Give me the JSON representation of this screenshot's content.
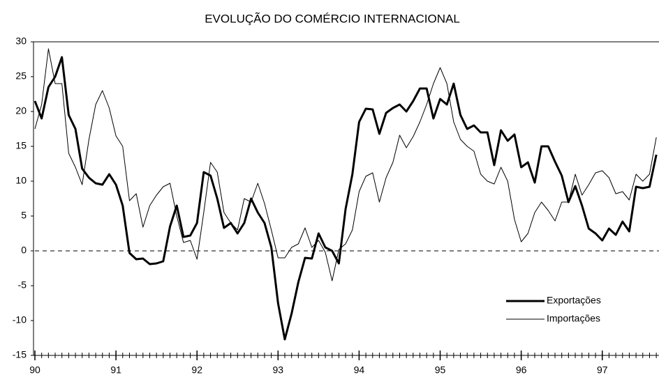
{
  "chart_data": {
    "type": "line",
    "title": "EVOLUÇÃO DO COMÉRCIO INTERNACIONAL",
    "x": [
      90,
      90.083,
      90.167,
      90.25,
      90.333,
      90.417,
      90.5,
      90.583,
      90.667,
      90.75,
      90.833,
      90.917,
      91,
      91.083,
      91.167,
      91.25,
      91.333,
      91.417,
      91.5,
      91.583,
      91.667,
      91.75,
      91.833,
      91.917,
      92,
      92.083,
      92.167,
      92.25,
      92.333,
      92.417,
      92.5,
      92.583,
      92.667,
      92.75,
      92.833,
      92.917,
      93,
      93.083,
      93.167,
      93.25,
      93.333,
      93.417,
      93.5,
      93.583,
      93.667,
      93.75,
      93.833,
      93.917,
      94,
      94.083,
      94.167,
      94.25,
      94.333,
      94.417,
      94.5,
      94.583,
      94.667,
      94.75,
      94.833,
      94.917,
      95,
      95.083,
      95.167,
      95.25,
      95.333,
      95.417,
      95.5,
      95.583,
      95.667,
      95.75,
      95.833,
      95.917,
      96,
      96.083,
      96.167,
      96.25,
      96.333,
      96.417,
      96.5,
      96.583,
      96.667,
      96.75,
      96.833,
      96.917,
      97,
      97.083,
      97.167,
      97.25,
      97.333,
      97.417,
      97.5,
      97.583,
      97.667
    ],
    "series": [
      {
        "name": "Exportações",
        "color": "#000000",
        "line_width": 3,
        "values": [
          21.5,
          19,
          23.5,
          25,
          27.8,
          19.5,
          17.5,
          11.8,
          10.5,
          9.7,
          9.5,
          11,
          9.5,
          6.5,
          -0.3,
          -1.2,
          -1.1,
          -1.9,
          -1.8,
          -1.5,
          3.5,
          6.5,
          2,
          2.2,
          4,
          11.3,
          10.8,
          7.5,
          3.3,
          4,
          2.5,
          4,
          7.5,
          5.5,
          4,
          0.5,
          -7.5,
          -12.7,
          -9,
          -4.5,
          -1,
          -1.1,
          2.5,
          0.5,
          0,
          -1.8,
          6,
          11,
          18.5,
          20.4,
          20.3,
          16.8,
          19.8,
          20.5,
          21,
          20,
          21.5,
          23.3,
          23.3,
          19,
          21.8,
          21,
          24,
          19.5,
          17.5,
          18,
          17,
          17,
          12.3,
          17.3,
          15.8,
          16.7,
          12,
          12.7,
          9.8,
          15,
          15,
          12.8,
          10.8,
          7,
          9.3,
          6.5,
          3.2,
          2.5,
          1.5,
          3.2,
          2.3,
          4.2,
          2.8,
          9.2,
          9,
          9.2,
          13.8
        ]
      },
      {
        "name": "Importações",
        "color": "#000000",
        "line_width": 1,
        "values": [
          17.5,
          21,
          29,
          24,
          24,
          14,
          12,
          9.5,
          16,
          21,
          23,
          20.5,
          16.5,
          15,
          7.2,
          8.2,
          3.4,
          6.5,
          8,
          9.2,
          9.7,
          5,
          1.2,
          1.5,
          -1.2,
          5.5,
          12.7,
          11.3,
          5.5,
          4,
          3,
          7.5,
          7,
          9.7,
          6.8,
          3,
          -1,
          -1,
          0.5,
          1,
          3.3,
          0.5,
          1.5,
          -0.2,
          -4.3,
          0.2,
          1,
          3,
          8.5,
          10.7,
          11.2,
          7,
          10.5,
          12.7,
          16.6,
          14.8,
          16.4,
          18.5,
          21,
          24,
          26.3,
          24,
          18.5,
          16,
          15,
          14.3,
          11,
          10,
          9.6,
          12,
          10,
          4.5,
          1.3,
          2.5,
          5.5,
          7,
          5.8,
          4.3,
          7,
          7,
          11,
          8,
          9.5,
          11.2,
          11.5,
          10.5,
          8.2,
          8.5,
          7.3,
          11,
          10,
          11,
          16.3
        ]
      }
    ],
    "xlim": [
      90,
      97.7
    ],
    "xticks": [
      90,
      91,
      92,
      93,
      94,
      95,
      96,
      97
    ],
    "ylim": [
      -15,
      30
    ],
    "yticks": [
      -15,
      -10,
      -5,
      0,
      5,
      10,
      15,
      20,
      25,
      30
    ],
    "legend": "lower right"
  }
}
